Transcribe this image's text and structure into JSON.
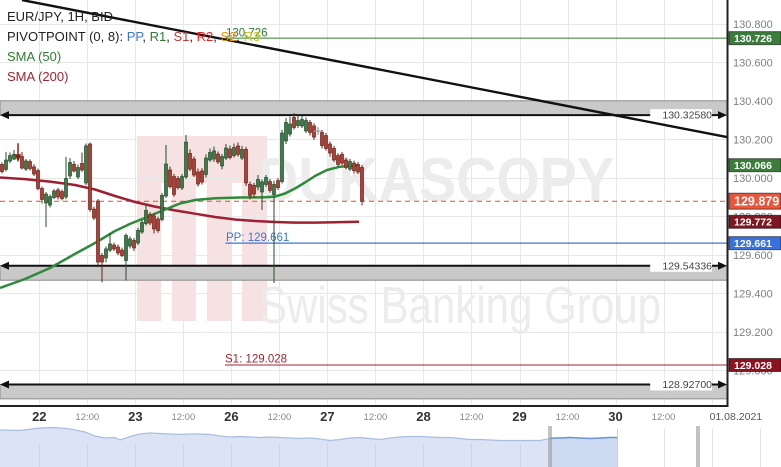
{
  "window": {
    "app": "Dukascopy chart"
  },
  "legend": {
    "instrument": "EUR/JPY, 1H, BID",
    "pivot_segments": [
      {
        "text": "PIVOTPOINT (0, 8): ",
        "color": "#222222"
      },
      {
        "text": "PP",
        "color": "#3e76d8"
      },
      {
        "text": ", ",
        "color": "#222222"
      },
      {
        "text": "R1",
        "color": "#2e7d32"
      },
      {
        "text": ", ",
        "color": "#222222"
      },
      {
        "text": "S1",
        "color": "#c03a3a"
      },
      {
        "text": ", ",
        "color": "#222222"
      },
      {
        "text": "R2",
        "color": "#ee2222"
      },
      {
        "text": ", ",
        "color": "#222222"
      },
      {
        "text": "S2",
        "color": "#f08c00"
      },
      {
        "text": ", ",
        "color": "#222222"
      },
      {
        "text": "R3",
        "color": "#d6c520"
      }
    ],
    "sma_fast": "SMA (50)",
    "sma_fast_color": "#2e7d32",
    "sma_slow": "SMA (200)",
    "sma_slow_color": "#a32430"
  },
  "watermark": {
    "brand": "DUKASCOPY",
    "subtitle": "Swiss Banking Group"
  },
  "chart_data": {
    "type": "candlestick",
    "symbol": "EUR/JPY",
    "timeframe": "1H",
    "side": "BID",
    "ylim": [
      128.86,
      130.924
    ],
    "price_gridlines": [
      130.8,
      130.6,
      130.4,
      130.2,
      130.0,
      129.8,
      129.6,
      129.4,
      129.2,
      129.0
    ],
    "y_tick_labels": [
      "130.800",
      "130.600",
      "130.400",
      "130.200",
      "130.000",
      "129.800",
      "129.600",
      "129.400",
      "129.200",
      "129.000"
    ],
    "x_tick_labels": [
      {
        "text": "22",
        "type": "day"
      },
      {
        "text": "12:00",
        "type": "hour"
      },
      {
        "text": "23",
        "type": "day"
      },
      {
        "text": "12:00",
        "type": "hour"
      },
      {
        "text": "26",
        "type": "day"
      },
      {
        "text": "12:00",
        "type": "hour"
      },
      {
        "text": "27",
        "type": "day"
      },
      {
        "text": "12:00",
        "type": "hour"
      },
      {
        "text": "28",
        "type": "day"
      },
      {
        "text": "12:00",
        "type": "hour"
      },
      {
        "text": "29",
        "type": "day"
      },
      {
        "text": "12:00",
        "type": "hour"
      },
      {
        "text": "30",
        "type": "day"
      },
      {
        "text": "12:00",
        "type": "hour"
      },
      {
        "text": "01.08.2021",
        "type": "date"
      }
    ],
    "candles": [
      [
        130.07,
        130.08,
        130.023,
        130.033
      ],
      [
        130.044,
        130.135,
        130.033,
        130.093
      ],
      [
        130.088,
        130.132,
        130.077,
        130.116
      ],
      [
        130.098,
        130.145,
        130.093,
        130.122
      ],
      [
        130.119,
        130.179,
        130.101,
        130.106
      ],
      [
        130.111,
        130.135,
        130.044,
        130.051
      ],
      [
        130.046,
        130.098,
        130.036,
        130.088
      ],
      [
        130.085,
        130.096,
        130.038,
        130.049
      ],
      [
        130.057,
        130.07,
        130.01,
        130.02
      ],
      [
        130.038,
        130.049,
        129.935,
        129.945
      ],
      [
        129.945,
        129.955,
        129.867,
        129.888
      ],
      [
        129.87,
        129.927,
        129.745,
        129.916
      ],
      [
        129.859,
        129.914,
        129.846,
        129.903
      ],
      [
        129.898,
        129.942,
        129.89,
        129.932
      ],
      [
        129.937,
        129.948,
        129.888,
        129.901
      ],
      [
        129.929,
        129.94,
        129.883,
        129.893
      ],
      [
        129.901,
        130.109,
        129.89,
        129.997
      ],
      [
        130.01,
        130.103,
        129.994,
        130.08
      ],
      [
        130.07,
        130.088,
        130.028,
        130.036
      ],
      [
        130.005,
        130.07,
        129.994,
        130.054
      ],
      [
        130.075,
        130.132,
        130.031,
        130.041
      ],
      [
        129.974,
        130.179,
        129.963,
        130.166
      ],
      [
        130.176,
        130.184,
        129.825,
        129.836
      ],
      [
        129.838,
        129.851,
        129.781,
        129.792
      ],
      [
        129.88,
        129.89,
        129.545,
        129.563
      ],
      [
        129.597,
        129.61,
        129.457,
        129.563
      ],
      [
        129.584,
        129.644,
        129.561,
        129.631
      ],
      [
        129.625,
        129.714,
        129.615,
        129.657
      ],
      [
        129.651,
        129.664,
        129.62,
        129.631
      ],
      [
        129.641,
        129.654,
        129.599,
        129.61
      ],
      [
        129.625,
        129.638,
        129.589,
        129.597
      ],
      [
        129.571,
        129.711,
        129.467,
        129.701
      ],
      [
        129.646,
        129.696,
        129.633,
        129.683
      ],
      [
        129.675,
        129.688,
        129.62,
        129.636
      ],
      [
        129.662,
        129.74,
        129.651,
        129.727
      ],
      [
        129.719,
        129.781,
        129.709,
        129.768
      ],
      [
        129.763,
        129.864,
        129.753,
        129.831
      ],
      [
        129.81,
        129.823,
        129.755,
        129.766
      ],
      [
        129.802,
        129.815,
        129.711,
        129.735
      ],
      [
        129.786,
        129.799,
        129.716,
        129.727
      ],
      [
        129.784,
        129.922,
        129.774,
        129.909
      ],
      [
        129.906,
        130.171,
        129.896,
        130.072
      ],
      [
        130.041,
        130.059,
        129.945,
        129.955
      ],
      [
        130.007,
        130.02,
        129.903,
        129.914
      ],
      [
        129.997,
        130.01,
        129.94,
        129.95
      ],
      [
        129.948,
        130.02,
        129.937,
        130.007
      ],
      [
        130.005,
        130.223,
        129.994,
        130.186
      ],
      [
        130.127,
        130.148,
        130.036,
        130.046
      ],
      [
        130.098,
        130.111,
        130.005,
        130.015
      ],
      [
        130.031,
        130.049,
        129.955,
        129.968
      ],
      [
        130.036,
        130.051,
        129.966,
        129.979
      ],
      [
        130.018,
        130.122,
        130.002,
        130.103
      ],
      [
        130.093,
        130.153,
        130.083,
        130.132
      ],
      [
        130.098,
        130.163,
        130.083,
        130.14
      ],
      [
        130.124,
        130.137,
        130.072,
        130.083
      ],
      [
        130.062,
        130.124,
        130.044,
        130.111
      ],
      [
        130.103,
        130.176,
        130.093,
        130.155
      ],
      [
        130.15,
        130.168,
        130.096,
        130.106
      ],
      [
        130.116,
        130.179,
        130.106,
        130.158
      ],
      [
        130.166,
        130.184,
        130.111,
        130.122
      ],
      [
        130.103,
        130.166,
        130.093,
        130.148
      ],
      [
        130.148,
        130.161,
        129.958,
        129.974
      ],
      [
        129.966,
        129.981,
        129.888,
        129.909
      ],
      [
        129.961,
        129.974,
        129.896,
        129.916
      ],
      [
        129.953,
        130.015,
        129.935,
        129.992
      ],
      [
        129.927,
        129.992,
        129.833,
        129.979
      ],
      [
        129.966,
        130.015,
        129.953,
        130.002
      ],
      [
        129.981,
        129.994,
        129.922,
        129.935
      ],
      [
        129.914,
        129.986,
        129.454,
        129.966
      ],
      [
        129.986,
        129.999,
        129.937,
        129.95
      ],
      [
        129.981,
        130.251,
        129.971,
        130.233
      ],
      [
        130.192,
        130.311,
        130.176,
        130.288
      ],
      [
        130.228,
        130.319,
        130.215,
        130.28
      ],
      [
        130.314,
        130.337,
        130.251,
        130.262
      ],
      [
        130.272,
        130.327,
        130.259,
        130.298
      ],
      [
        130.27,
        130.324,
        130.259,
        130.303
      ],
      [
        130.244,
        130.314,
        130.233,
        130.298
      ],
      [
        130.288,
        130.301,
        130.22,
        130.236
      ],
      [
        130.27,
        130.283,
        130.197,
        130.212
      ],
      [
        130.242,
        130.262,
        130.22,
        130.242
      ],
      [
        130.236,
        130.249,
        130.153,
        130.168
      ],
      [
        130.22,
        130.233,
        130.142,
        130.153
      ],
      [
        130.176,
        130.189,
        130.109,
        130.129
      ],
      [
        130.153,
        130.166,
        130.083,
        130.093
      ],
      [
        130.116,
        130.129,
        130.059,
        130.07
      ],
      [
        130.122,
        130.135,
        130.067,
        130.077
      ],
      [
        130.093,
        130.106,
        130.044,
        130.054
      ],
      [
        130.046,
        130.098,
        130.036,
        130.085
      ],
      [
        130.077,
        130.09,
        130.023,
        130.038
      ],
      [
        130.07,
        130.083,
        130.02,
        130.031
      ],
      [
        130.054,
        130.067,
        129.857,
        129.879
      ]
    ],
    "candles_format": "[open, high, low, close]",
    "sma50": {
      "label": "SMA (50)",
      "color": "#2e8b3a",
      "points": [
        [
          0,
          129.428
        ],
        [
          25,
          129.475
        ],
        [
          50,
          129.532
        ],
        [
          75,
          129.605
        ],
        [
          95,
          129.662
        ],
        [
          115,
          129.724
        ],
        [
          130,
          129.761
        ],
        [
          145,
          129.792
        ],
        [
          160,
          129.825
        ],
        [
          170,
          129.846
        ],
        [
          180,
          129.867
        ],
        [
          195,
          129.885
        ],
        [
          215,
          129.894
        ],
        [
          240,
          129.898
        ],
        [
          265,
          129.899
        ],
        [
          275,
          129.903
        ],
        [
          285,
          129.919
        ],
        [
          295,
          129.945
        ],
        [
          305,
          129.976
        ],
        [
          315,
          130.01
        ],
        [
          327,
          130.041
        ],
        [
          340,
          130.058
        ],
        [
          350,
          130.063
        ],
        [
          359,
          130.065
        ]
      ]
    },
    "sma200": {
      "label": "SMA (200)",
      "color": "#9e2033",
      "points": [
        [
          0,
          130.002
        ],
        [
          25,
          129.994
        ],
        [
          50,
          129.981
        ],
        [
          75,
          129.963
        ],
        [
          95,
          129.94
        ],
        [
          115,
          129.906
        ],
        [
          135,
          129.875
        ],
        [
          155,
          129.851
        ],
        [
          175,
          129.831
        ],
        [
          195,
          129.814
        ],
        [
          215,
          129.797
        ],
        [
          235,
          129.784
        ],
        [
          255,
          129.776
        ],
        [
          275,
          129.771
        ],
        [
          295,
          129.768
        ],
        [
          315,
          129.768
        ],
        [
          335,
          129.77
        ],
        [
          359,
          129.772
        ]
      ]
    },
    "trendline": {
      "color": "#111111",
      "from": [
        22,
        130.924
      ],
      "to": [
        727,
        130.212
      ]
    },
    "zones": [
      {
        "label": "130.32580",
        "price": 130.3258,
        "side": "above"
      },
      {
        "label": "129.54336",
        "price": 129.54336,
        "side": "below"
      },
      {
        "label": "128.92700",
        "price": 128.927,
        "side": "below"
      }
    ],
    "pivot_levels": {
      "r1": {
        "label": "130.726",
        "price": 130.726,
        "color": "#2e7d32"
      },
      "pp": {
        "label": "PP: 129.661",
        "price": 129.661,
        "color": "#3e76d8"
      },
      "s1": {
        "label": "S1: 129.028",
        "price": 129.028,
        "color": "#a32430"
      }
    },
    "current_price": {
      "label": "129.879",
      "price": 129.879,
      "color": "#f04830"
    },
    "price_badges": [
      {
        "label": "130.726",
        "price": 130.726,
        "bg": "#3c7d3c",
        "big": false
      },
      {
        "label": "130.066",
        "price": 130.066,
        "bg": "#3c7d3c",
        "big": false
      },
      {
        "label": "129.879",
        "price": 129.879,
        "bg": "#e8573d",
        "big": true
      },
      {
        "label": "129.772",
        "price": 129.772,
        "bg": "#7d1822",
        "big": false
      },
      {
        "label": "129.661",
        "price": 129.661,
        "bg": "#3a71dd",
        "big": false
      },
      {
        "label": "129.028",
        "price": 129.028,
        "bg": "#8c1220",
        "big": false
      }
    ],
    "markers": [
      {
        "type": "sell-arrow",
        "candle_index": 4,
        "price_from": 130.18,
        "price_to": 130.105,
        "color": "#8b1e14"
      },
      {
        "type": "doji-cross",
        "candle_index": 79,
        "price": 130.243,
        "color": "#999999"
      }
    ],
    "navigator": {
      "points": [
        [
          0,
          430
        ],
        [
          20,
          430.5
        ],
        [
          40,
          428
        ],
        [
          55,
          427.5
        ],
        [
          70,
          429
        ],
        [
          85,
          432
        ],
        [
          95,
          436
        ],
        [
          105,
          438
        ],
        [
          115,
          437.5
        ],
        [
          120,
          440
        ],
        [
          130,
          436.5
        ],
        [
          140,
          434
        ],
        [
          150,
          433
        ],
        [
          160,
          433.5
        ],
        [
          170,
          434
        ],
        [
          180,
          434.5
        ],
        [
          190,
          434
        ],
        [
          200,
          434
        ],
        [
          210,
          434.5
        ],
        [
          220,
          436
        ],
        [
          230,
          437
        ],
        [
          240,
          436.5
        ],
        [
          250,
          437
        ],
        [
          260,
          437.5
        ],
        [
          270,
          437
        ],
        [
          280,
          437.5
        ],
        [
          290,
          438
        ],
        [
          300,
          438.5
        ],
        [
          310,
          438
        ],
        [
          320,
          439
        ],
        [
          330,
          440.5
        ],
        [
          340,
          439.5
        ],
        [
          350,
          438
        ],
        [
          360,
          437.5
        ],
        [
          370,
          438.5
        ],
        [
          380,
          439.5
        ],
        [
          390,
          438
        ],
        [
          400,
          437
        ],
        [
          410,
          436.5
        ],
        [
          420,
          436.5
        ],
        [
          430,
          437
        ],
        [
          440,
          437.5
        ],
        [
          450,
          437.5
        ],
        [
          460,
          438.5
        ],
        [
          470,
          439.5
        ],
        [
          480,
          439.5
        ],
        [
          490,
          440
        ],
        [
          500,
          440.5
        ],
        [
          510,
          440.5
        ],
        [
          520,
          440.5
        ],
        [
          530,
          440.5
        ],
        [
          540,
          440.5
        ],
        [
          550,
          438.5
        ],
        [
          555,
          438
        ],
        [
          560,
          438
        ],
        [
          570,
          437.5
        ],
        [
          580,
          438
        ],
        [
          590,
          438.5
        ],
        [
          600,
          438
        ],
        [
          610,
          437.5
        ],
        [
          617,
          437.5
        ]
      ],
      "points_format": "[x_px, y_px]",
      "data_end_x": 617,
      "selection": [
        550,
        698
      ],
      "fill": "#dbe3f4",
      "line": "#a9bedf",
      "selected_fill": "#cddaf1",
      "selected_line": "#6a94d8",
      "handle_color": "#9a9a9a"
    }
  },
  "colors": {
    "bg": "#ffffff",
    "grid": "#e8e8e8",
    "candle_up_fill": "#3f7b4a",
    "candle_up_stroke": "#234d2a",
    "candle_down_fill": "#ae4136",
    "candle_down_stroke": "#6e2018",
    "zone_fill": "#c9c9c9",
    "zone_edge": "#8a8a8a",
    "zone_line": "#111111",
    "axis_border": "#222222",
    "tick_text": "#808080",
    "day_text": "#333333",
    "hour_text": "#888888",
    "date_text": "#555555",
    "watermark_text": "#ececec",
    "watermark_logo": "#f6e2e2"
  }
}
